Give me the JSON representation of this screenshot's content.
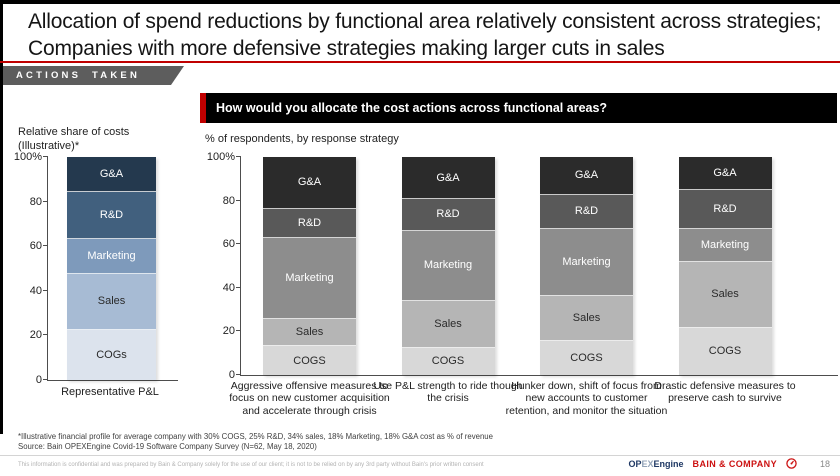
{
  "slide": {
    "title": "Allocation of spend reductions by functional area relatively consistent across strategies; Companies with more defensive strategies making larger cuts in sales",
    "section_tag": "ACTIONS TAKEN",
    "question_banner": "How would you allocate the cost actions across functional areas?",
    "accent_color": "#c00000"
  },
  "pnl_chart": {
    "title": "Relative share of costs\n(Illustrative)*",
    "caption": "Representative P&L"
  },
  "survey_chart": {
    "subtitle": "% of respondents, by response strategy"
  },
  "footnotes": {
    "note": "*Illustrative financial profile for average company with 30% COGS, 25% R&D, 34% sales, 18% Marketing, 18% G&A cost as % of revenue",
    "source": "Source: Bain OPEXEngine Covid-19 Software Company Survey (N=62, May 18, 2020)"
  },
  "footer": {
    "disclaimer": "This information is confidential and was prepared by Bain & Company solely for the use of our client; it is not to be relied on by any 3rd party without Bain's prior written consent",
    "opex_logo": {
      "part1": "OP",
      "part2": "EX",
      "part3": "Engine"
    },
    "bain_logo": "BAIN & COMPANY",
    "page_number": "18"
  },
  "chart_data": [
    {
      "type": "bar",
      "stacked": true,
      "title": "Relative share of costs (Illustrative)*",
      "xlabel": "Representative P&L",
      "ylabel": "",
      "ylim": [
        0,
        100
      ],
      "yticks": [
        0,
        20,
        40,
        60,
        80,
        100
      ],
      "ytick_top_label": "100%",
      "grid": false,
      "legend": "labels-inside-segments",
      "categories": [
        "Representative P&L"
      ],
      "series": [
        {
          "name": "COGs",
          "values": [
            24
          ],
          "color": "#dce3ed",
          "text_color": "#2a2a2a"
        },
        {
          "name": "Sales",
          "values": [
            27
          ],
          "color": "#a7bbd4",
          "text_color": "#2a2a2a"
        },
        {
          "name": "Marketing",
          "values": [
            14
          ],
          "color": "#7e9abb",
          "text_color": "#ffffff"
        },
        {
          "name": "R&D",
          "values": [
            21
          ],
          "color": "#41607e",
          "text_color": "#ffffff"
        },
        {
          "name": "G&A",
          "values": [
            14
          ],
          "color": "#24394e",
          "text_color": "#ffffff"
        }
      ]
    },
    {
      "type": "bar",
      "stacked": true,
      "title": "How would you allocate the cost actions across functional areas?",
      "subtitle": "% of respondents, by response strategy",
      "ylim": [
        0,
        100
      ],
      "yticks": [
        0,
        20,
        40,
        60,
        80,
        100
      ],
      "ytick_top_label": "100%",
      "grid": false,
      "legend": "labels-inside-segments",
      "categories": [
        "Aggressive offensive measures to focus on new customer acquisition and accelerate through crisis",
        "Use P&L strength to ride though the crisis",
        "Hunker down, shift of focus from new accounts to customer retention, and monitor the situation",
        "Drastic defensive measures to preserve cash to survive"
      ],
      "series": [
        {
          "name": "COGS",
          "values": [
            11,
            10,
            14,
            23
          ],
          "color": "#d8d8d8",
          "text_color": "#2a2a2a"
        },
        {
          "name": "Sales",
          "values": [
            9,
            22,
            21,
            34
          ],
          "color": "#b5b5b5",
          "text_color": "#2a2a2a"
        },
        {
          "name": "Marketing",
          "values": [
            44,
            37,
            35,
            13
          ],
          "color": "#8d8d8d",
          "text_color": "#ffffff"
        },
        {
          "name": "R&D",
          "values": [
            11,
            12,
            14,
            17
          ],
          "color": "#595959",
          "text_color": "#ffffff"
        },
        {
          "name": "G&A",
          "values": [
            25,
            19,
            16,
            13
          ],
          "color": "#2b2b2b",
          "text_color": "#ffffff"
        }
      ]
    }
  ]
}
